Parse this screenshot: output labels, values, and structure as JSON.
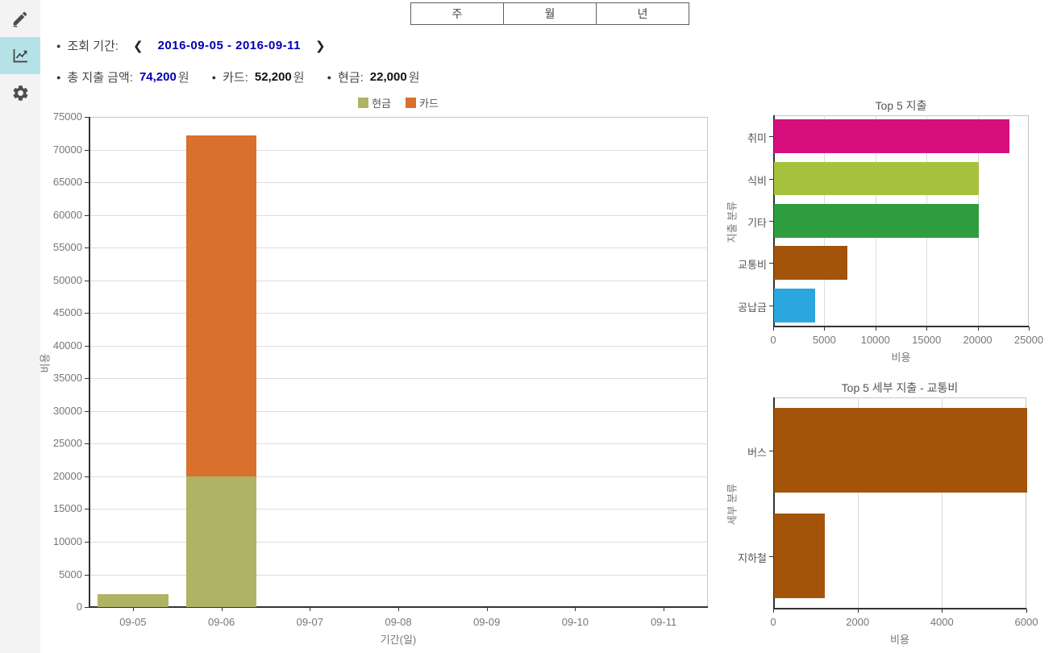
{
  "tabs": [
    {
      "label": "주"
    },
    {
      "label": "월"
    },
    {
      "label": "년"
    }
  ],
  "sidebar": {
    "items": [
      {
        "name": "edit",
        "icon": "pencil-icon",
        "active": false
      },
      {
        "name": "statistics",
        "icon": "line-chart-icon",
        "active": true
      },
      {
        "name": "settings",
        "icon": "gear-icon",
        "active": false
      }
    ]
  },
  "period": {
    "bullet": "●",
    "label": "조회 기간:",
    "prev_arrow": "❮",
    "value": "2016-09-05 - 2016-09-11",
    "next_arrow": "❯"
  },
  "summary": {
    "bullet": "●",
    "total_label": "총 지출 금액:",
    "total_value": "74,200",
    "card_label": "카드:",
    "card_value": "52,200",
    "cash_label": "현금:",
    "cash_value": "22,000",
    "currency": "원"
  },
  "colors": {
    "sidebar_active": "#b5e2e7",
    "blue_text": "#0000b2",
    "cash": "#aeb464",
    "card": "#d8702e",
    "hobby": "#d60f7d",
    "food": "#a6c23d",
    "etc": "#2f9e41",
    "transport": "#a3540a",
    "dues": "#2aa7de"
  },
  "chart_data": [
    {
      "id": "main",
      "type": "bar",
      "stacked": true,
      "title": "",
      "categories": [
        "09-05",
        "09-06",
        "09-07",
        "09-08",
        "09-09",
        "09-10",
        "09-11"
      ],
      "series": [
        {
          "name": "현금",
          "color": "#aeb464",
          "values": [
            2000,
            20000,
            0,
            0,
            0,
            0,
            0
          ]
        },
        {
          "name": "카드",
          "color": "#d8702e",
          "values": [
            0,
            52200,
            0,
            0,
            0,
            0,
            0
          ]
        }
      ],
      "xlabel": "기간(일)",
      "ylabel": "비용",
      "ylim": [
        0,
        75000
      ],
      "ytick": 5000,
      "grid": true,
      "legend_position": "top-center"
    },
    {
      "id": "top5",
      "type": "bar-horizontal",
      "title": "Top 5 지출",
      "categories": [
        "취미",
        "식비",
        "기타",
        "교통비",
        "공납금"
      ],
      "values": [
        23000,
        20000,
        20000,
        7200,
        4000
      ],
      "colors": [
        "#d60f7d",
        "#a6c23d",
        "#2f9e41",
        "#a3540a",
        "#2aa7de"
      ],
      "xlabel": "비용",
      "ylabel": "지출 분류",
      "xlim": [
        0,
        25000
      ],
      "xtick": 5000,
      "grid": true
    },
    {
      "id": "detail",
      "type": "bar-horizontal",
      "title": "Top 5 세부 지출 - 교통비",
      "categories": [
        "버스",
        "지하철"
      ],
      "values": [
        6000,
        1200
      ],
      "colors": [
        "#a3540a",
        "#a3540a"
      ],
      "xlabel": "비용",
      "ylabel": "세부 분류",
      "xlim": [
        0,
        6000
      ],
      "xtick": 2000,
      "grid": true
    }
  ]
}
